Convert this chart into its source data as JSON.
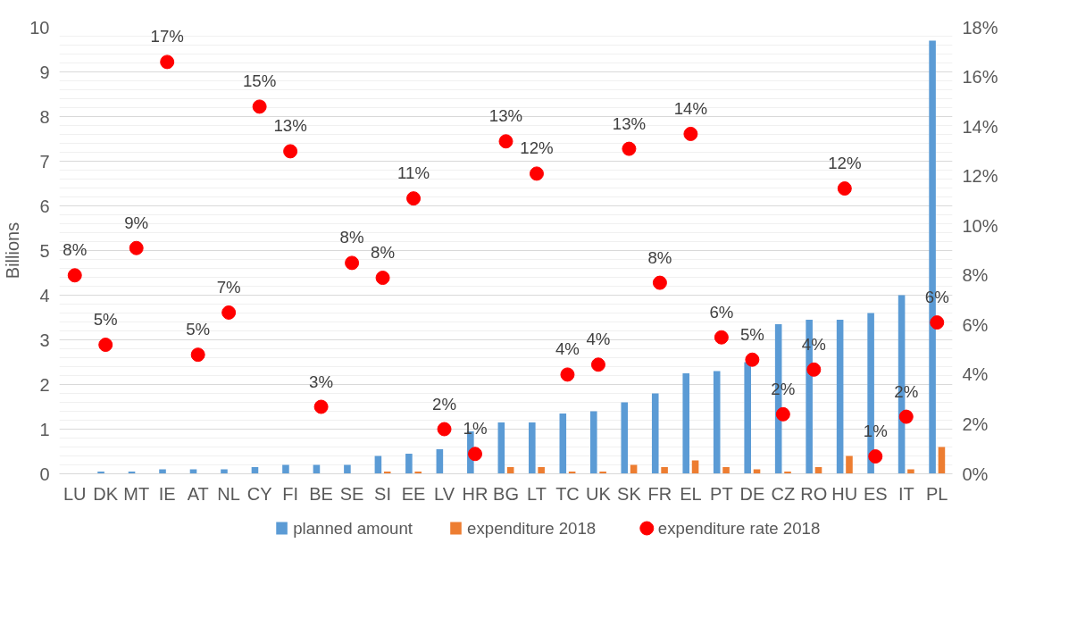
{
  "chart_data": {
    "type": "bar",
    "ylabel": "Billions",
    "categories": [
      "LU",
      "DK",
      "MT",
      "IE",
      "AT",
      "NL",
      "CY",
      "FI",
      "BE",
      "SE",
      "SI",
      "EE",
      "LV",
      "HR",
      "BG",
      "LT",
      "TC",
      "UK",
      "SK",
      "FR",
      "EL",
      "PT",
      "DE",
      "CZ",
      "RO",
      "HU",
      "ES",
      "IT",
      "PL"
    ],
    "series": [
      {
        "name": "planned amount",
        "color": "#5b9bd5",
        "values": [
          0,
          0.05,
          0.05,
          0.1,
          0.1,
          0.1,
          0.15,
          0.2,
          0.2,
          0.2,
          0.4,
          0.45,
          0.55,
          0.95,
          1.15,
          1.15,
          1.35,
          1.4,
          1.6,
          1.8,
          2.25,
          2.3,
          2.5,
          3.35,
          3.45,
          3.45,
          3.6,
          4.0,
          9.7
        ]
      },
      {
        "name": "expenditure 2018",
        "color": "#ed7d31",
        "values": [
          0,
          0,
          0,
          0,
          0,
          0,
          0,
          0,
          0,
          0,
          0.05,
          0.05,
          0,
          0,
          0.15,
          0.15,
          0.05,
          0.05,
          0.2,
          0.15,
          0.3,
          0.15,
          0.1,
          0.05,
          0.15,
          0.4,
          0,
          0.1,
          0.6
        ]
      },
      {
        "name": "expenditure rate 2018",
        "type": "scatter",
        "axis": "y2",
        "marker": "circle",
        "color": "#ff0000",
        "values": [
          8.0,
          5.2,
          9.1,
          16.6,
          4.8,
          6.5,
          14.8,
          13.0,
          2.7,
          8.5,
          7.9,
          11.1,
          1.8,
          0.8,
          13.4,
          12.1,
          4.0,
          4.4,
          13.1,
          7.7,
          13.7,
          5.5,
          4.6,
          2.4,
          4.2,
          11.5,
          0.7,
          2.3,
          6.1
        ],
        "value_labels": [
          "8%",
          "5%",
          "9%",
          "17%",
          "5%",
          "7%",
          "15%",
          "13%",
          "3%",
          "8%",
          "8%",
          "11%",
          "2%",
          "1%",
          "13%",
          "12%",
          "4%",
          "4%",
          "13%",
          "8%",
          "14%",
          "6%",
          "5%",
          "2%",
          "4%",
          "12%",
          "1%",
          "2%",
          "6%"
        ]
      }
    ],
    "ylim": [
      0,
      10
    ],
    "yticks": [
      0,
      1,
      2,
      3,
      4,
      5,
      6,
      7,
      8,
      9,
      10
    ],
    "y2lim": [
      0,
      18
    ],
    "y2ticks": [
      {
        "value": 0,
        "label": "0%"
      },
      {
        "value": 2,
        "label": "2%"
      },
      {
        "value": 4,
        "label": "4%"
      },
      {
        "value": 6,
        "label": "6%"
      },
      {
        "value": 8,
        "label": "8%"
      },
      {
        "value": 10,
        "label": "10%"
      },
      {
        "value": 12,
        "label": "12%"
      },
      {
        "value": 14,
        "label": "14%"
      },
      {
        "value": 16,
        "label": "16%"
      },
      {
        "value": 18,
        "label": "18%"
      }
    ],
    "grid": "y",
    "legend": "bottom"
  }
}
